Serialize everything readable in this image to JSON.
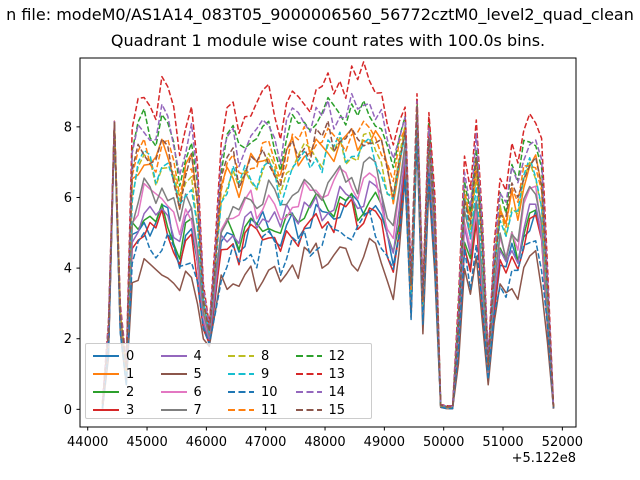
{
  "figure": {
    "title_line1": "n file: modeM0/AS1A14_083T05_9000006560_56772cztM0_level2_quad_clean",
    "title_line2": "Quadrant 1 module wise count rates with 100.0s bins.",
    "x_offset_label": "+5.122e8",
    "background_color": "#ffffff",
    "text_color": "#000000"
  },
  "axes": {
    "x_ticks": [
      44000,
      45000,
      46000,
      47000,
      48000,
      49000,
      50000,
      51000,
      52000
    ],
    "y_ticks": [
      0,
      2,
      4,
      6,
      8
    ],
    "xlim": [
      43870,
      52230
    ],
    "ylim": [
      -0.5,
      9.95
    ],
    "grid": false,
    "spine_color": "#000000"
  },
  "chart_data": {
    "type": "line",
    "title": "Quadrant 1 module wise count rates with 100.0s bins.",
    "xlabel": "",
    "ylabel": "",
    "x_axis_offset": "+5.122e8",
    "bin_seconds": 100.0,
    "legend_position": "lower left",
    "x_start": 44250,
    "x_step": 100,
    "n_points": 77,
    "x_visible_range": [
      44250,
      51850
    ],
    "center": [
      0.1,
      2.0,
      8.1,
      2.6,
      1.0,
      5.8,
      6.3,
      6.6,
      6.4,
      6.2,
      6.7,
      6.5,
      6.0,
      5.3,
      6.0,
      6.2,
      5.0,
      2.8,
      2.1,
      3.8,
      5.6,
      6.0,
      6.2,
      5.7,
      6.1,
      6.3,
      6.1,
      6.4,
      6.5,
      6.2,
      5.7,
      6.3,
      6.6,
      6.4,
      6.7,
      6.5,
      6.8,
      6.6,
      6.9,
      6.7,
      7.0,
      6.8,
      7.0,
      6.7,
      7.0,
      7.1,
      6.9,
      6.6,
      5.9,
      5.4,
      6.4,
      7.6,
      3.2,
      8.3,
      2.8,
      7.4,
      5.0,
      0.1,
      0.05,
      0.05,
      2.2,
      5.6,
      4.8,
      6.3,
      4.0,
      1.1,
      3.6,
      5.1,
      4.7,
      5.5,
      5.1,
      6.0,
      6.4,
      6.4,
      5.6,
      3.0,
      0.05
    ],
    "spread": [
      0.05,
      0.2,
      0.03,
      0.2,
      0.15,
      0.85,
      1.0,
      1.0,
      1.0,
      1.0,
      1.05,
      1.0,
      0.95,
      0.9,
      0.95,
      1.0,
      0.8,
      0.3,
      0.15,
      0.5,
      0.9,
      1.0,
      1.0,
      0.95,
      1.0,
      1.0,
      1.0,
      1.0,
      1.0,
      1.0,
      0.95,
      1.0,
      1.0,
      1.0,
      1.0,
      1.0,
      1.05,
      1.0,
      1.05,
      1.0,
      1.05,
      1.0,
      1.05,
      1.0,
      1.05,
      1.05,
      1.0,
      1.0,
      0.9,
      0.85,
      0.9,
      0.5,
      0.3,
      0.25,
      0.25,
      0.45,
      0.5,
      0.02,
      0.02,
      0.02,
      0.35,
      0.75,
      0.7,
      0.8,
      0.6,
      0.15,
      0.55,
      0.75,
      0.7,
      0.8,
      0.75,
      0.85,
      0.9,
      0.85,
      0.8,
      0.4,
      0.02
    ],
    "reference_center": 6.4,
    "noise_amp": 0.45,
    "noise_table": [
      0.35,
      -0.55,
      0.75,
      -0.25,
      0.55,
      -0.8,
      0.15,
      0.9,
      -0.65,
      0.45,
      -0.85,
      0.25,
      -0.45,
      0.65,
      -0.15,
      -0.35
    ],
    "model": "value[i][t] = center[t] + (series[i].level - reference_center)*spread[t] + noise_amp*spread[t]*noise_table[(5*t+7*i) mod 16], clamped to >= 0.02; x[t] = x_start + x_step*t (plus axis offset +5.122e8 seconds)",
    "series": [
      {
        "name": "0",
        "color": "#1f77b4",
        "dashed": false,
        "level": 5.2
      },
      {
        "name": "1",
        "color": "#ff7f0e",
        "dashed": false,
        "level": 7.1
      },
      {
        "name": "2",
        "color": "#2ca02c",
        "dashed": false,
        "level": 5.4
      },
      {
        "name": "3",
        "color": "#d62728",
        "dashed": false,
        "level": 5.0
      },
      {
        "name": "4",
        "color": "#9467bd",
        "dashed": false,
        "level": 5.5
      },
      {
        "name": "5",
        "color": "#8c564b",
        "dashed": false,
        "level": 4.0
      },
      {
        "name": "6",
        "color": "#e377c2",
        "dashed": false,
        "level": 5.9
      },
      {
        "name": "7",
        "color": "#7f7f7f",
        "dashed": false,
        "level": 6.1
      },
      {
        "name": "8",
        "color": "#bcbd22",
        "dashed": true,
        "level": 6.9
      },
      {
        "name": "9",
        "color": "#17becf",
        "dashed": true,
        "level": 6.8
      },
      {
        "name": "10",
        "color": "#1f77b4",
        "dashed": true,
        "level": 4.6
      },
      {
        "name": "11",
        "color": "#ff7f0e",
        "dashed": true,
        "level": 7.3
      },
      {
        "name": "12",
        "color": "#2ca02c",
        "dashed": true,
        "level": 7.9
      },
      {
        "name": "13",
        "color": "#d62728",
        "dashed": true,
        "level": 8.7
      },
      {
        "name": "14",
        "color": "#9467bd",
        "dashed": true,
        "level": 8.0
      },
      {
        "name": "15",
        "color": "#8c564b",
        "dashed": true,
        "level": 7.2
      }
    ]
  }
}
